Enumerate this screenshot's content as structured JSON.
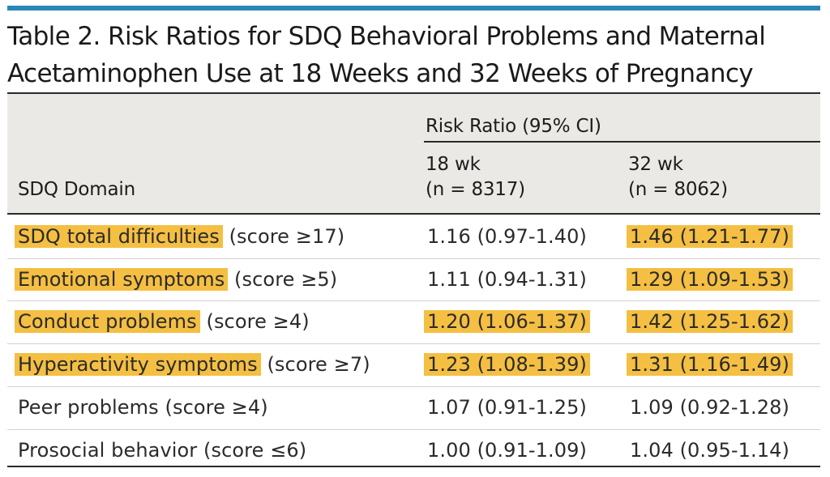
{
  "title": {
    "line1": "Table 2. Risk Ratios for SDQ Behavioral Problems and Maternal",
    "line2": "Acetaminophen Use at 18 Weeks and 32 Weeks of Pregnancy"
  },
  "header": {
    "domain": "SDQ Domain",
    "group": "Risk Ratio (95% CI)",
    "col18_line1": "18 wk",
    "col18_line2": "(n = 8317)",
    "col32_line1": "32 wk",
    "col32_line2": "(n = 8062)"
  },
  "highlight_color": "#f4bf42",
  "rows": [
    {
      "domain": "SDQ total difficulties",
      "criterion": "(score ≥17)",
      "wk18": "1.16 (0.97-1.40)",
      "wk32": "1.46 (1.21-1.77)",
      "hl_domain": true,
      "hl18": false,
      "hl32": true
    },
    {
      "domain": "Emotional symptoms",
      "criterion": "(score ≥5)",
      "wk18": "1.11 (0.94-1.31)",
      "wk32": "1.29 (1.09-1.53)",
      "hl_domain": true,
      "hl18": false,
      "hl32": true
    },
    {
      "domain": "Conduct problems",
      "criterion": "(score ≥4)",
      "wk18": "1.20 (1.06-1.37)",
      "wk32": "1.42 (1.25-1.62)",
      "hl_domain": true,
      "hl18": true,
      "hl32": true
    },
    {
      "domain": "Hyperactivity symptoms",
      "criterion": "(score ≥7)",
      "wk18": "1.23 (1.08-1.39)",
      "wk32": "1.31 (1.16-1.49)",
      "hl_domain": true,
      "hl18": true,
      "hl32": true
    },
    {
      "domain": "Peer problems",
      "criterion": "(score ≥4)",
      "wk18": "1.07 (0.91-1.25)",
      "wk32": "1.09 (0.92-1.28)",
      "hl_domain": false,
      "hl18": false,
      "hl32": false
    },
    {
      "domain": "Prosocial behavior",
      "criterion": "(score ≤6)",
      "wk18": "1.00 (0.91-1.09)",
      "wk32": "1.04 (0.95-1.14)",
      "hl_domain": false,
      "hl18": false,
      "hl32": false
    }
  ]
}
